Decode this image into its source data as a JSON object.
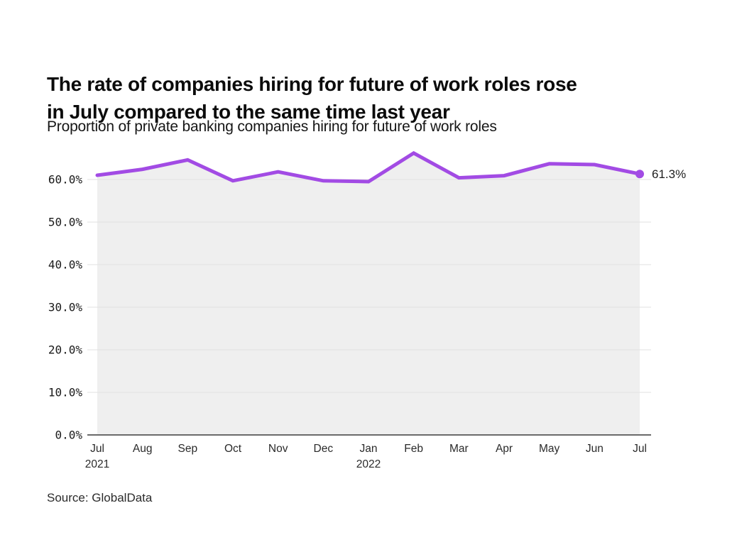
{
  "page": {
    "title_lines": [
      "The rate of companies hiring for future of work roles rose",
      "in July compared to the same time last year"
    ],
    "subtitle": "Proportion of private banking companies hiring for future of work roles",
    "source": "Source: GlobalData"
  },
  "chart_data": {
    "type": "line",
    "title": "The rate of companies hiring for future of work roles rose in July compared to the same time last year",
    "subtitle": "Proportion of private banking companies hiring for future of work roles",
    "months": [
      "Jul",
      "Aug",
      "Sep",
      "Oct",
      "Nov",
      "Dec",
      "Jan",
      "Feb",
      "Mar",
      "Apr",
      "May",
      "Jun",
      "Jul"
    ],
    "year_marks": {
      "0": "2021",
      "6": "2022"
    },
    "series": [
      {
        "name": "Proportion of private banking companies hiring for future of work roles",
        "values": [
          61.0,
          62.4,
          64.6,
          59.7,
          61.8,
          59.7,
          59.5,
          66.2,
          60.4,
          60.9,
          63.7,
          63.5,
          61.3
        ]
      }
    ],
    "end_label": "61.3%",
    "y_ticks": [
      {
        "value": 0,
        "label": "0.0%"
      },
      {
        "value": 10,
        "label": "10.0%"
      },
      {
        "value": 20,
        "label": "20.0%"
      },
      {
        "value": 30,
        "label": "30.0%"
      },
      {
        "value": 40,
        "label": "40.0%"
      },
      {
        "value": 50,
        "label": "50.0%"
      },
      {
        "value": 60,
        "label": "60.0%"
      }
    ],
    "ylim": [
      0,
      70
    ],
    "grid": "horizontal",
    "legend": "none",
    "colors": {
      "line": "#a24be4",
      "area_fill": "#efefef",
      "gridline": "#e2e2e2",
      "axis_line": "#6a6a6a",
      "tick_text": "#1a1a1a",
      "month_text": "#2a2a2a",
      "end_label_text": "#1d1d1d"
    }
  }
}
